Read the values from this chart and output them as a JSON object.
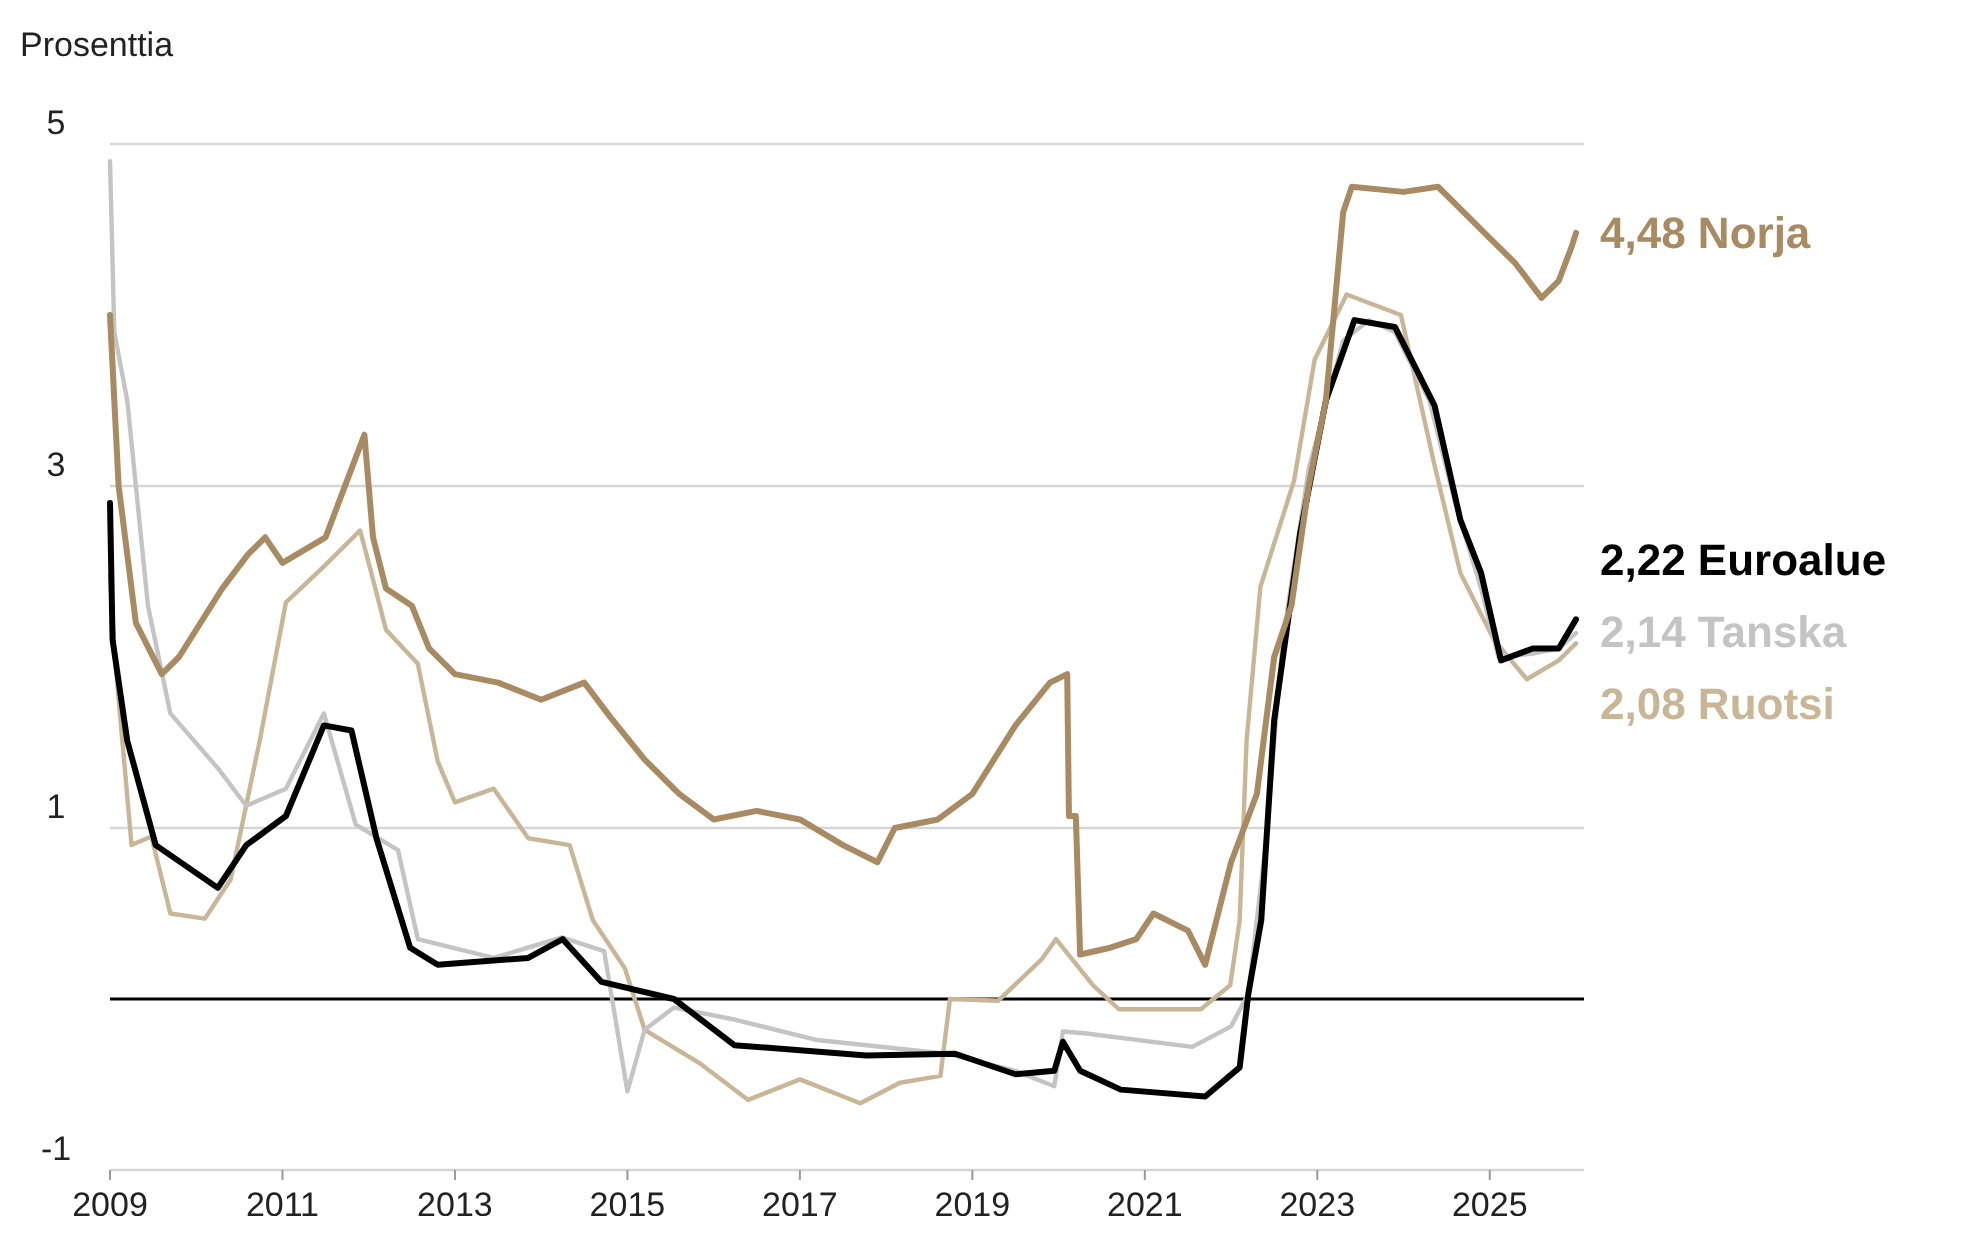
{
  "chart_data": {
    "type": "line",
    "ylabel": "Prosenttia",
    "xlim": [
      2009,
      2026
    ],
    "xticks": [
      2009,
      2011,
      2013,
      2015,
      2017,
      2019,
      2021,
      2023,
      2025
    ],
    "ylim": [
      -1,
      5
    ],
    "yticks": [
      -1,
      1,
      3,
      5
    ],
    "grid": "y",
    "line_style": "solid",
    "ref_lines": [
      {
        "axis": "y",
        "value": 0,
        "color": "#000000"
      }
    ],
    "series": [
      {
        "name": "Norja",
        "color": "#a88a63",
        "x": [
          2009,
          2009.1,
          2009.3,
          2009.6,
          2009.8,
          2010.3,
          2010.6,
          2010.8,
          2011,
          2011.5,
          2011.8,
          2011.95,
          2012.05,
          2012.2,
          2012.5,
          2012.7,
          2013,
          2013.5,
          2014,
          2014.5,
          2014.8,
          2015.2,
          2015.6,
          2016,
          2016.5,
          2017,
          2017.5,
          2017.9,
          2018.1,
          2018.6,
          2019,
          2019.5,
          2019.9,
          2020.1,
          2020.12,
          2020.2,
          2020.25,
          2020.6,
          2020.9,
          2021.1,
          2021.5,
          2021.7,
          2022,
          2022.3,
          2022.5,
          2022.7,
          2022.9,
          2023.1,
          2023.3,
          2023.4,
          2024,
          2024.4,
          2024.7,
          2025,
          2025.3,
          2025.6,
          2025.8,
          2025.95,
          2026
        ],
        "values": [
          4.0,
          3.0,
          2.2,
          1.9,
          2.0,
          2.4,
          2.6,
          2.7,
          2.55,
          2.7,
          3.1,
          3.3,
          2.7,
          2.4,
          2.3,
          2.05,
          1.9,
          1.85,
          1.75,
          1.85,
          1.65,
          1.4,
          1.2,
          1.05,
          1.1,
          1.05,
          0.9,
          0.8,
          1.0,
          1.05,
          1.2,
          1.6,
          1.85,
          1.9,
          1.07,
          1.07,
          0.26,
          0.3,
          0.35,
          0.5,
          0.4,
          0.2,
          0.8,
          1.2,
          2.0,
          2.3,
          3.0,
          3.5,
          4.6,
          4.75,
          4.72,
          4.75,
          4.6,
          4.45,
          4.3,
          4.1,
          4.2,
          4.4,
          4.48
        ],
        "value_labels": [
          null,
          null,
          null,
          null,
          null,
          null,
          null,
          null,
          null,
          null,
          null,
          null,
          null,
          null,
          null,
          null,
          null,
          null,
          null,
          null,
          null,
          null,
          null,
          null,
          null,
          null,
          null,
          null,
          null,
          null,
          null,
          null,
          null,
          null,
          null,
          null,
          null,
          null,
          null,
          null,
          null,
          null,
          null,
          null,
          null,
          null,
          null,
          null,
          null,
          null,
          null,
          null,
          null,
          null,
          null,
          null,
          null,
          null,
          "4,48"
        ]
      },
      {
        "name": "Euroalue",
        "color": "#000000",
        "x": [
          2009,
          2009.03,
          2009.2,
          2009.53,
          2010.25,
          2010.58,
          2011.04,
          2011.48,
          2011.8,
          2012.09,
          2012.48,
          2012.8,
          2013.85,
          2014.25,
          2014.7,
          2015.54,
          2016.24,
          2017.77,
          2018.8,
          2019.5,
          2019.95,
          2020.05,
          2020.25,
          2020.72,
          2021.7,
          2022.1,
          2022.2,
          2022.35,
          2022.5,
          2022.8,
          2023.1,
          2023.43,
          2023.9,
          2024.36,
          2024.66,
          2024.9,
          2025.13,
          2025.5,
          2025.8,
          2026
        ],
        "values": [
          2.9,
          2.1,
          1.51,
          0.9,
          0.65,
          0.9,
          1.07,
          1.6,
          1.57,
          0.94,
          0.3,
          0.2,
          0.24,
          0.35,
          0.1,
          0.0,
          -0.27,
          -0.33,
          -0.32,
          -0.44,
          -0.42,
          -0.25,
          -0.42,
          -0.53,
          -0.57,
          -0.4,
          0.03,
          0.46,
          1.63,
          2.72,
          3.5,
          3.97,
          3.93,
          3.47,
          2.8,
          2.49,
          1.98,
          2.05,
          2.05,
          2.22
        ],
        "value_labels": [
          null,
          null,
          null,
          null,
          null,
          null,
          null,
          null,
          null,
          null,
          null,
          null,
          null,
          null,
          null,
          null,
          null,
          null,
          null,
          null,
          null,
          null,
          null,
          null,
          null,
          null,
          null,
          null,
          null,
          null,
          null,
          null,
          null,
          null,
          null,
          null,
          null,
          null,
          null,
          "2,22"
        ]
      },
      {
        "name": "Tanska",
        "color": "#c4c4c4",
        "x": [
          2009,
          2009.05,
          2009.2,
          2009.44,
          2009.7,
          2010.25,
          2010.58,
          2011.04,
          2011.48,
          2011.85,
          2012.34,
          2012.57,
          2013.45,
          2014.24,
          2014.73,
          2015,
          2015.2,
          2015.54,
          2016.24,
          2017.2,
          2018.7,
          2019.5,
          2019.95,
          2020.05,
          2020.3,
          2021.55,
          2022,
          2022.2,
          2022.4,
          2022.6,
          2022.9,
          2023.3,
          2023.6,
          2023.9,
          2024.3,
          2024.6,
          2024.9,
          2025.1,
          2025.5,
          2025.8,
          2026
        ],
        "values": [
          4.9,
          3.9,
          3.5,
          2.3,
          1.67,
          1.35,
          1.13,
          1.23,
          1.67,
          1.02,
          0.87,
          0.35,
          0.24,
          0.36,
          0.28,
          -0.54,
          -0.18,
          -0.05,
          -0.12,
          -0.24,
          -0.32,
          -0.42,
          -0.51,
          -0.19,
          -0.2,
          -0.28,
          -0.16,
          0.03,
          0.9,
          2.1,
          3.1,
          3.85,
          3.97,
          3.9,
          3.5,
          2.9,
          2.4,
          2.0,
          2.02,
          2.05,
          2.14
        ],
        "value_labels": [
          null,
          null,
          null,
          null,
          null,
          null,
          null,
          null,
          null,
          null,
          null,
          null,
          null,
          null,
          null,
          null,
          null,
          null,
          null,
          null,
          null,
          null,
          null,
          null,
          null,
          null,
          null,
          null,
          null,
          null,
          null,
          null,
          null,
          null,
          null,
          null,
          null,
          null,
          null,
          null,
          "2,14"
        ]
      },
      {
        "name": "Ruotsi",
        "color": "#c9b697",
        "x": [
          2009,
          2009.05,
          2009.25,
          2009.48,
          2009.7,
          2010.1,
          2010.4,
          2010.74,
          2011.04,
          2011.46,
          2011.9,
          2012,
          2012.2,
          2012.57,
          2012.8,
          2013,
          2013.45,
          2013.85,
          2014.33,
          2014.6,
          2014.97,
          2015.2,
          2015.85,
          2016.4,
          2017,
          2017.7,
          2018.16,
          2018.63,
          2018.74,
          2019.3,
          2019.8,
          2019.97,
          2020.4,
          2020.7,
          2021.65,
          2021.99,
          2022.1,
          2022.18,
          2022.34,
          2022.73,
          2022.97,
          2023.34,
          2023.97,
          2024.36,
          2024.66,
          2025.05,
          2025.43,
          2025.8,
          2026
        ],
        "values": [
          2.48,
          2.04,
          0.9,
          0.95,
          0.5,
          0.47,
          0.7,
          1.52,
          2.32,
          2.52,
          2.74,
          2.55,
          2.16,
          1.96,
          1.39,
          1.15,
          1.23,
          0.94,
          0.9,
          0.46,
          0.18,
          -0.18,
          -0.38,
          -0.59,
          -0.47,
          -0.61,
          -0.49,
          -0.45,
          0.0,
          -0.01,
          0.23,
          0.35,
          0.08,
          -0.06,
          -0.06,
          0.08,
          0.46,
          1.51,
          2.41,
          3.03,
          3.74,
          4.12,
          4.0,
          3.12,
          2.49,
          2.1,
          1.87,
          1.98,
          2.08
        ],
        "value_labels": [
          null,
          null,
          null,
          null,
          null,
          null,
          null,
          null,
          null,
          null,
          null,
          null,
          null,
          null,
          null,
          null,
          null,
          null,
          null,
          null,
          null,
          null,
          null,
          null,
          null,
          null,
          null,
          null,
          null,
          null,
          null,
          null,
          null,
          null,
          null,
          null,
          null,
          null,
          null,
          null,
          null,
          null,
          null,
          null,
          null,
          null,
          null,
          null,
          "2,08"
        ]
      }
    ]
  }
}
